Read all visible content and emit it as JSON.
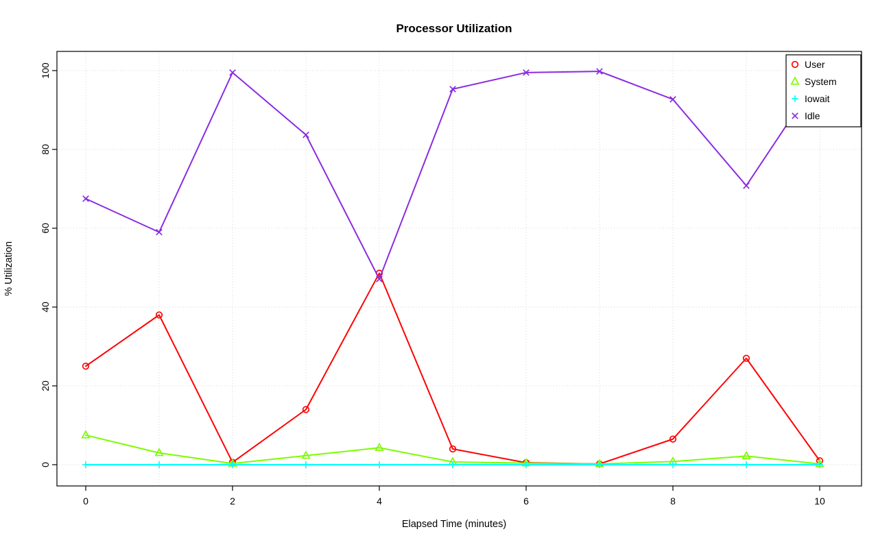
{
  "chart_data": {
    "type": "line",
    "title": "Processor Utilization",
    "xlabel": "Elapsed Time (minutes)",
    "ylabel": "% Utilization",
    "x": [
      0,
      1,
      2,
      3,
      4,
      5,
      6,
      7,
      8,
      9,
      10
    ],
    "xlim": [
      0,
      10
    ],
    "ylim": [
      0,
      100
    ],
    "x_ticks": [
      0,
      2,
      4,
      6,
      8,
      10
    ],
    "y_ticks": [
      0,
      20,
      40,
      60,
      80,
      100
    ],
    "grid": true,
    "grid_style": "dotted-lightgray",
    "legend_position": "top-right",
    "background_color": "#ffffff",
    "series": [
      {
        "name": "User",
        "color": "#ff0000",
        "marker": "circle",
        "values": [
          25,
          38,
          0.6,
          14,
          48.6,
          4,
          0.5,
          0.2,
          6.5,
          27,
          1
        ]
      },
      {
        "name": "System",
        "color": "#7cfc00",
        "marker": "triangle",
        "values": [
          7.5,
          3,
          0.3,
          2.3,
          4.3,
          0.7,
          0.4,
          0.2,
          0.8,
          2.2,
          0.2
        ]
      },
      {
        "name": "Iowait",
        "color": "#00ffff",
        "marker": "plus",
        "values": [
          0,
          0,
          0,
          0,
          0,
          0,
          0,
          0,
          0,
          0,
          0
        ]
      },
      {
        "name": "Idle",
        "color": "#8a2be2",
        "marker": "x",
        "values": [
          67.5,
          59,
          99.5,
          83.7,
          47.1,
          95.3,
          99.5,
          99.8,
          92.7,
          70.8,
          98.8
        ]
      }
    ]
  }
}
